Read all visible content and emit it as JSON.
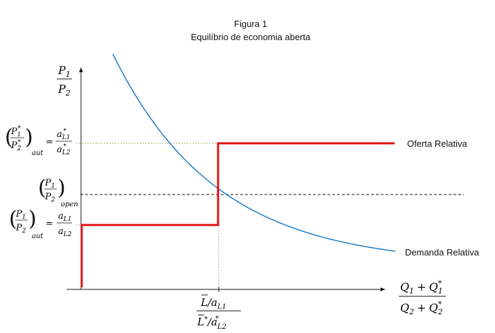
{
  "figure": {
    "title": "Figura 1",
    "subtitle": "Equilíbrio de economia aberta"
  },
  "curves": {
    "supply_label": "Oferta Relativa",
    "demand_label": "Demanda Relativa"
  },
  "colors": {
    "supply": "#e01010",
    "demand": "#1a7cc9",
    "axis": "#111111",
    "guide_dotted": "#b8a67a",
    "guide_dashed": "#111111"
  },
  "axes": {
    "y_label": {
      "num": "P",
      "num_sub": "1",
      "den": "P",
      "den_sub": "2"
    },
    "x_label": {
      "num": "Q",
      "num_sub": "1",
      "num2": "Q",
      "num2_sub": "1",
      "num2_sup": "*",
      "den": "Q",
      "den_sub": "2",
      "den2": "Q",
      "den2_sub": "2",
      "den2_sup": "*",
      "op": "+"
    },
    "x_tick": {
      "top_L": "L",
      "top_a": "a",
      "top_sub": "L1",
      "bot_L": "L",
      "bot_star": "*",
      "bot_a": "a",
      "bot_sub": "L2",
      "bot_sup": "*",
      "slash": "/"
    }
  },
  "levels": {
    "foreign_aut": {
      "sub": "aut",
      "rhs_num": "a",
      "rhs_num_sub": "L1",
      "rhs_num_sup": "*",
      "rhs_den": "a",
      "rhs_den_sub": "L2",
      "rhs_den_sup": "*",
      "eq": "=",
      "star": "*"
    },
    "open": {
      "sub": "open"
    },
    "home_aut": {
      "sub": "aut",
      "rhs_num": "a",
      "rhs_num_sub": "L1",
      "rhs_den": "a",
      "rhs_den_sub": "L2",
      "eq": "="
    }
  }
}
